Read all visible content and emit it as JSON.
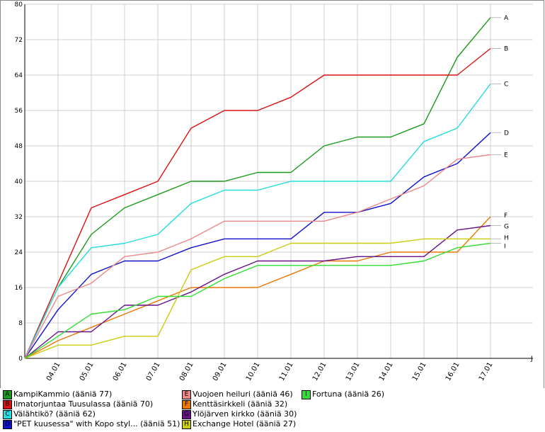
{
  "chart_data": {
    "type": "line",
    "categories": [
      "",
      "04.01",
      "05.01",
      "06.01",
      "07.01",
      "08.01",
      "09.01",
      "10.01",
      "11.01",
      "12.01",
      "13.01",
      "14.01",
      "15.01",
      "16.01",
      "17.01"
    ],
    "ylim": [
      0,
      80
    ],
    "yticks": [
      "0",
      "8",
      "16",
      "24",
      "32",
      "40",
      "48",
      "56",
      "64",
      "72",
      "80"
    ],
    "grid": true,
    "legend_position": "bottom",
    "series": [
      {
        "letter": "A",
        "name": "KampiKammio (ääniä 77)",
        "color": "#1a9a1a",
        "values": [
          0,
          16,
          28,
          34,
          37,
          40,
          40,
          42,
          42,
          48,
          50,
          50,
          53,
          68,
          77
        ]
      },
      {
        "letter": "B",
        "name": "Ilmatorjuntaa Tuusulassa (ääniä 70)",
        "color": "#dd1111",
        "values": [
          0,
          17,
          34,
          37,
          40,
          52,
          56,
          56,
          59,
          64,
          64,
          64,
          64,
          64,
          70
        ]
      },
      {
        "letter": "C",
        "name": "Välähtikö? (ääniä 62)",
        "color": "#22dddd",
        "values": [
          0,
          16,
          25,
          26,
          28,
          35,
          38,
          38,
          40,
          40,
          40,
          40,
          49,
          52,
          62
        ]
      },
      {
        "letter": "D",
        "name": "\"PET kuusessa\" with Kopo styl... (ääniä 51)",
        "color": "#1111cc",
        "values": [
          0,
          11,
          19,
          22,
          22,
          25,
          27,
          27,
          27,
          33,
          33,
          35,
          41,
          44,
          51
        ]
      },
      {
        "letter": "E",
        "name": "Vuojoen heiluri (ääniä 46)",
        "color": "#ee8888",
        "values": [
          0,
          14,
          17,
          23,
          24,
          27,
          31,
          31,
          31,
          31,
          33,
          36,
          39,
          45,
          46
        ]
      },
      {
        "letter": "F",
        "name": "Kenttäsirkkeli (ääniä 32)",
        "color": "#ee7700",
        "values": [
          0,
          4,
          7,
          10,
          13,
          16,
          16,
          16,
          19,
          22,
          22,
          24,
          24,
          24,
          32
        ]
      },
      {
        "letter": "G",
        "name": "Ylöjärven kirkko (ääniä 30)",
        "color": "#661188",
        "values": [
          0,
          6,
          6,
          12,
          12,
          15,
          19,
          22,
          22,
          22,
          23,
          23,
          23,
          29,
          30
        ]
      },
      {
        "letter": "H",
        "name": "Exchange Hotel (ääniä 27)",
        "color": "#cccc11",
        "values": [
          0,
          3,
          3,
          5,
          5,
          20,
          23,
          23,
          26,
          26,
          26,
          26,
          27,
          27,
          27
        ]
      },
      {
        "letter": "I",
        "name": "Fortuna (ääniä 26)",
        "color": "#33dd33",
        "values": [
          0,
          5,
          10,
          11,
          14,
          14,
          18,
          21,
          21,
          21,
          21,
          21,
          22,
          25,
          26
        ]
      }
    ],
    "extra_label": "J"
  }
}
